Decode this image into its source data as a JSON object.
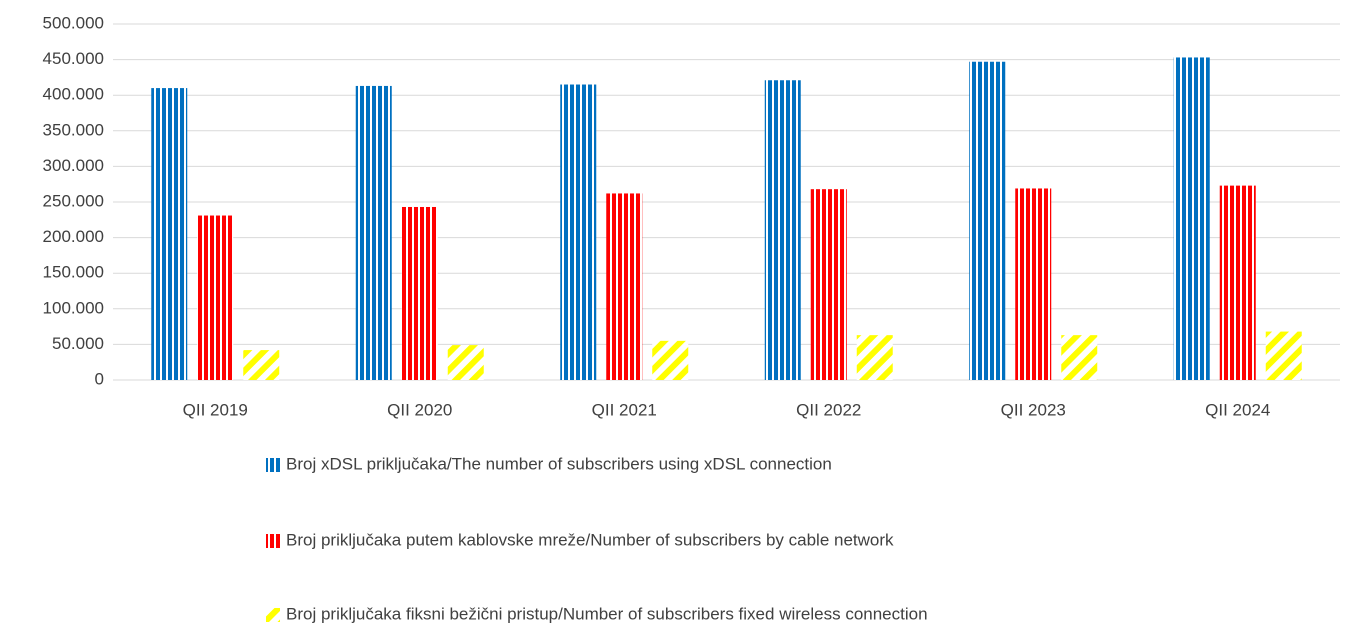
{
  "chart_data": {
    "type": "bar",
    "categories": [
      "QII 2019",
      "QII 2020",
      "QII 2021",
      "QII 2022",
      "QII 2023",
      "QII 2024"
    ],
    "series": [
      {
        "name": "Broj  xDSL priključaka/The number of subscribers using  xDSL connection",
        "color": "#0070c0",
        "pattern": "vertical",
        "values": [
          410000,
          413000,
          415000,
          421000,
          447000,
          453000
        ]
      },
      {
        "name": "Broj priključaka putem  kablovske mreže/Number of subscribers by cable network",
        "color": "#ff0000",
        "pattern": "vertical",
        "values": [
          231000,
          243000,
          262000,
          268000,
          269000,
          273000
        ]
      },
      {
        "name": "Broj priključaka fiksni bežični pristup/Number of subscribers fixed wireless connection",
        "color": "#ffff00",
        "pattern": "diagonal",
        "values": [
          42000,
          49000,
          55000,
          63000,
          63000,
          68000
        ]
      }
    ],
    "ylim": [
      0,
      500000
    ],
    "yticks": [
      0,
      {
        "value": 50000,
        "label": "50.000"
      },
      {
        "value": 100000,
        "label": "100.000"
      },
      {
        "value": 150000,
        "label": "150.000"
      },
      {
        "value": 200000,
        "label": "200.000"
      },
      {
        "value": 250000,
        "label": "250.000"
      },
      {
        "value": 300000,
        "label": "300.000"
      },
      {
        "value": 350000,
        "label": "350.000"
      },
      {
        "value": 400000,
        "label": "400.000"
      },
      {
        "value": 450000,
        "label": "450.000"
      },
      {
        "value": 500000,
        "label": "500.000"
      }
    ],
    "grid": true,
    "legend": "bottom"
  }
}
